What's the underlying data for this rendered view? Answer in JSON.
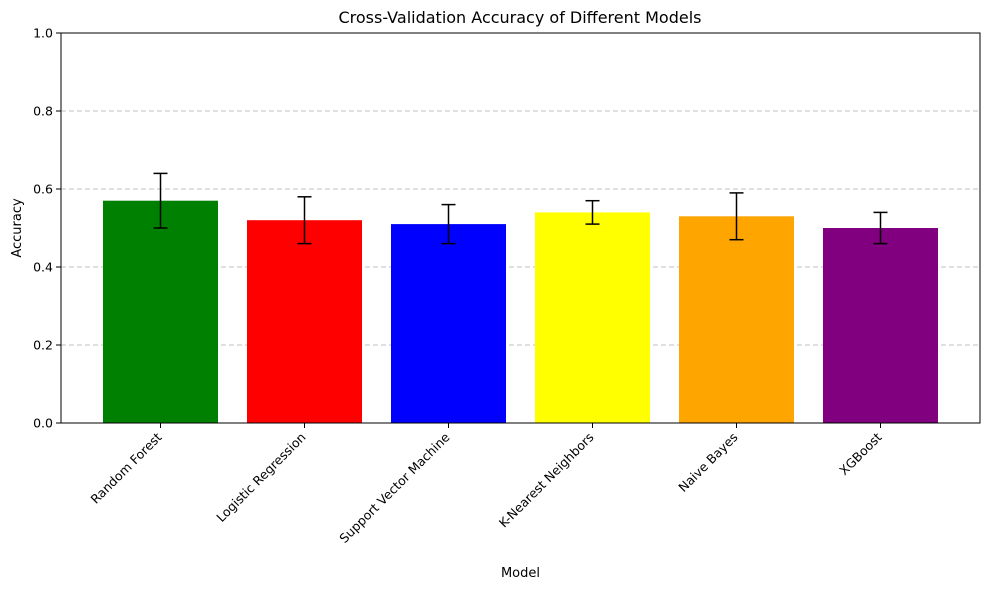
{
  "chart_data": {
    "type": "bar",
    "title": "Cross-Validation Accuracy of Different Models",
    "xlabel": "Model",
    "ylabel": "Accuracy",
    "ylim": [
      0,
      1
    ],
    "yticks": [
      0.0,
      0.2,
      0.4,
      0.6,
      0.8,
      1.0
    ],
    "ytick_labels": [
      "0.0",
      "0.2",
      "0.4",
      "0.6",
      "0.8",
      "1.0"
    ],
    "grid": "y-dashed",
    "categories": [
      "Random Forest",
      "Logistic Regression",
      "Support Vector Machine",
      "K-Nearest Neighbors",
      "Naive Bayes",
      "XGBoost"
    ],
    "values": [
      0.57,
      0.52,
      0.51,
      0.54,
      0.53,
      0.5
    ],
    "errors": [
      0.07,
      0.06,
      0.05,
      0.03,
      0.06,
      0.04
    ],
    "colors": [
      "#008000",
      "#ff0000",
      "#0000ff",
      "#ffff00",
      "#ffa500",
      "#800080"
    ]
  }
}
